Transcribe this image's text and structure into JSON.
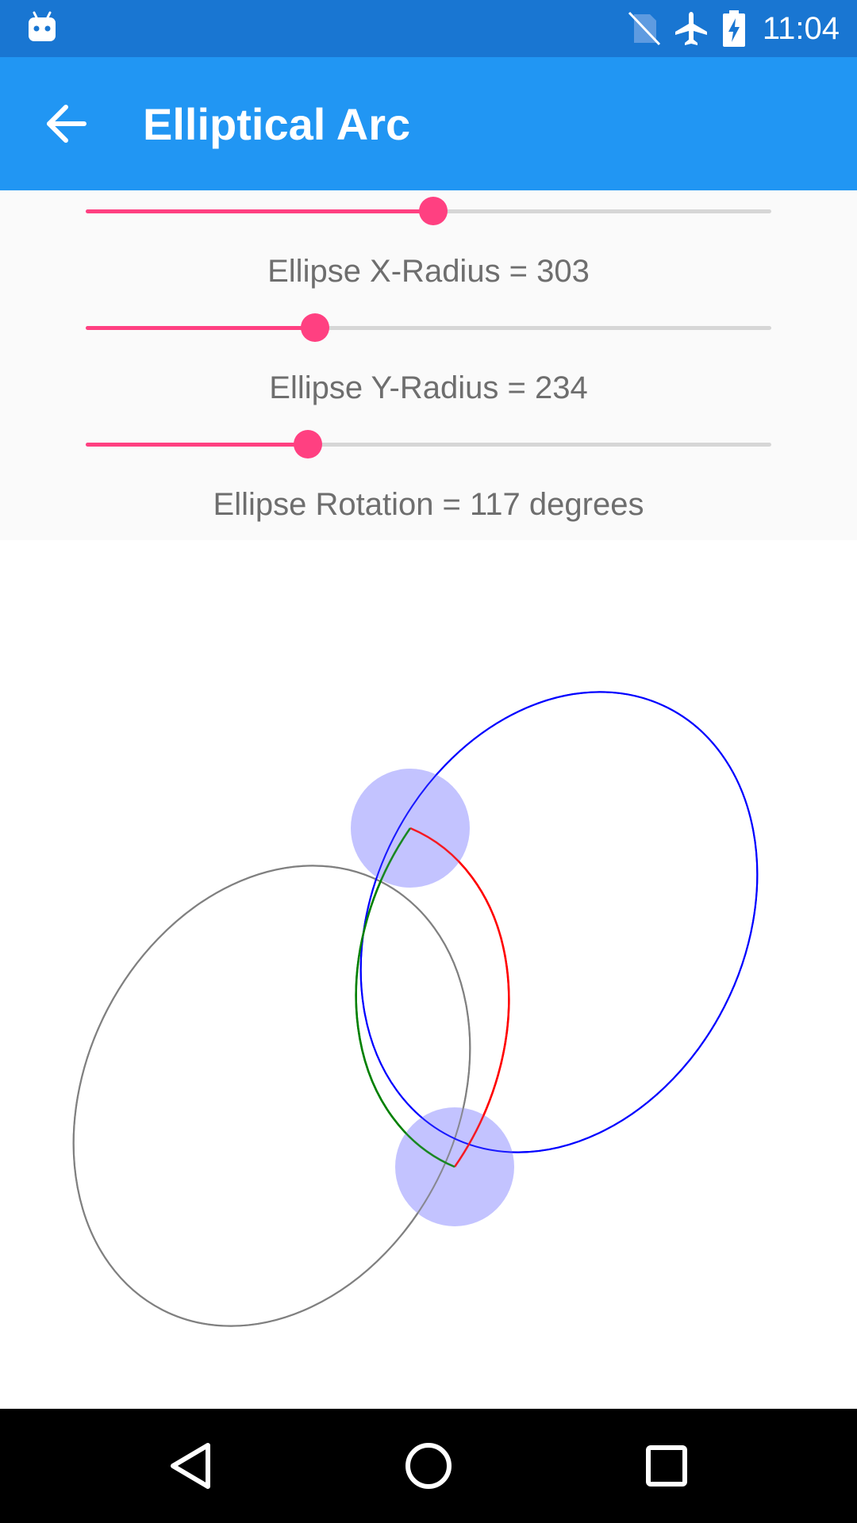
{
  "status_bar": {
    "time": "11:04",
    "icons": [
      "android-debug-icon",
      "no-sim-icon",
      "airplane-mode-icon",
      "battery-charging-icon"
    ]
  },
  "app_bar": {
    "title": "Elliptical Arc",
    "back_icon": "arrow-back-icon"
  },
  "controls": {
    "sliders": [
      {
        "name": "slider-1",
        "fraction": 0.507,
        "label": ""
      },
      {
        "name": "ellipse-x-radius",
        "fraction": 0.335,
        "label": "Ellipse X-Radius = 303"
      },
      {
        "name": "ellipse-y-radius",
        "fraction": 0.324,
        "label": "Ellipse Y-Radius = 234"
      }
    ],
    "rotation_label": "Ellipse Rotation = 117 degrees"
  },
  "canvas": {
    "colors": {
      "gray_ellipse": "#808080",
      "blue_ellipse": "#0000FF",
      "red_arc": "#FF0000",
      "green_arc": "#008000",
      "handle_fill": "#BDBDFF"
    }
  },
  "nav_bar": {
    "icons": [
      "back-triangle-icon",
      "home-circle-icon",
      "recents-square-icon"
    ]
  },
  "accent_color": "#FF4081",
  "primary_color": "#2196F3",
  "primary_dark_color": "#1976D2"
}
